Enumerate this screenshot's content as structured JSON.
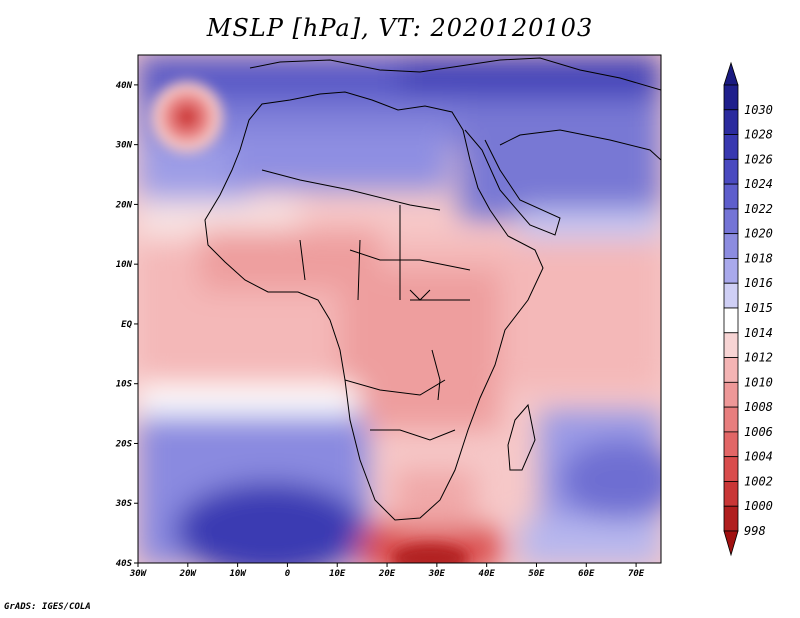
{
  "title": "MSLP [hPa], VT: 2020120103",
  "credit": "GrADS: IGES/COLA",
  "map": {
    "lon_labels": [
      "30W",
      "20W",
      "10W",
      "0",
      "10E",
      "20E",
      "30E",
      "40E",
      "50E",
      "60E",
      "70E"
    ],
    "lat_labels": [
      "40N",
      "30N",
      "20N",
      "10N",
      "EQ",
      "10S",
      "20S",
      "30S",
      "40S"
    ],
    "extent": {
      "lon_min": -30,
      "lon_max": 75,
      "lat_min": -40,
      "lat_max": 45
    }
  },
  "colorbar": {
    "levels": [
      {
        "label": "1030",
        "color": "#1f1f8c"
      },
      {
        "label": "1028",
        "color": "#2b2b9e"
      },
      {
        "label": "1026",
        "color": "#3838b0"
      },
      {
        "label": "1024",
        "color": "#4a4ac0"
      },
      {
        "label": "1022",
        "color": "#5e5ecc"
      },
      {
        "label": "1020",
        "color": "#7474d6"
      },
      {
        "label": "1018",
        "color": "#8c8ce0"
      },
      {
        "label": "1016",
        "color": "#a9a9ec"
      },
      {
        "label": "1015",
        "color": "#cfcff5"
      },
      {
        "label": "1014",
        "color": "#ffffff"
      },
      {
        "label": "1012",
        "color": "#f7d4d4"
      },
      {
        "label": "1010",
        "color": "#f4b4b4"
      },
      {
        "label": "1008",
        "color": "#ee9898"
      },
      {
        "label": "1006",
        "color": "#e87e7e"
      },
      {
        "label": "1004",
        "color": "#e26666"
      },
      {
        "label": "1002",
        "color": "#d94c4c"
      },
      {
        "label": "1000",
        "color": "#c93636"
      },
      {
        "label": "998",
        "color": "#b01e1e"
      }
    ],
    "top_color": "#1a1a80",
    "bottom_color": "#a01010"
  }
}
